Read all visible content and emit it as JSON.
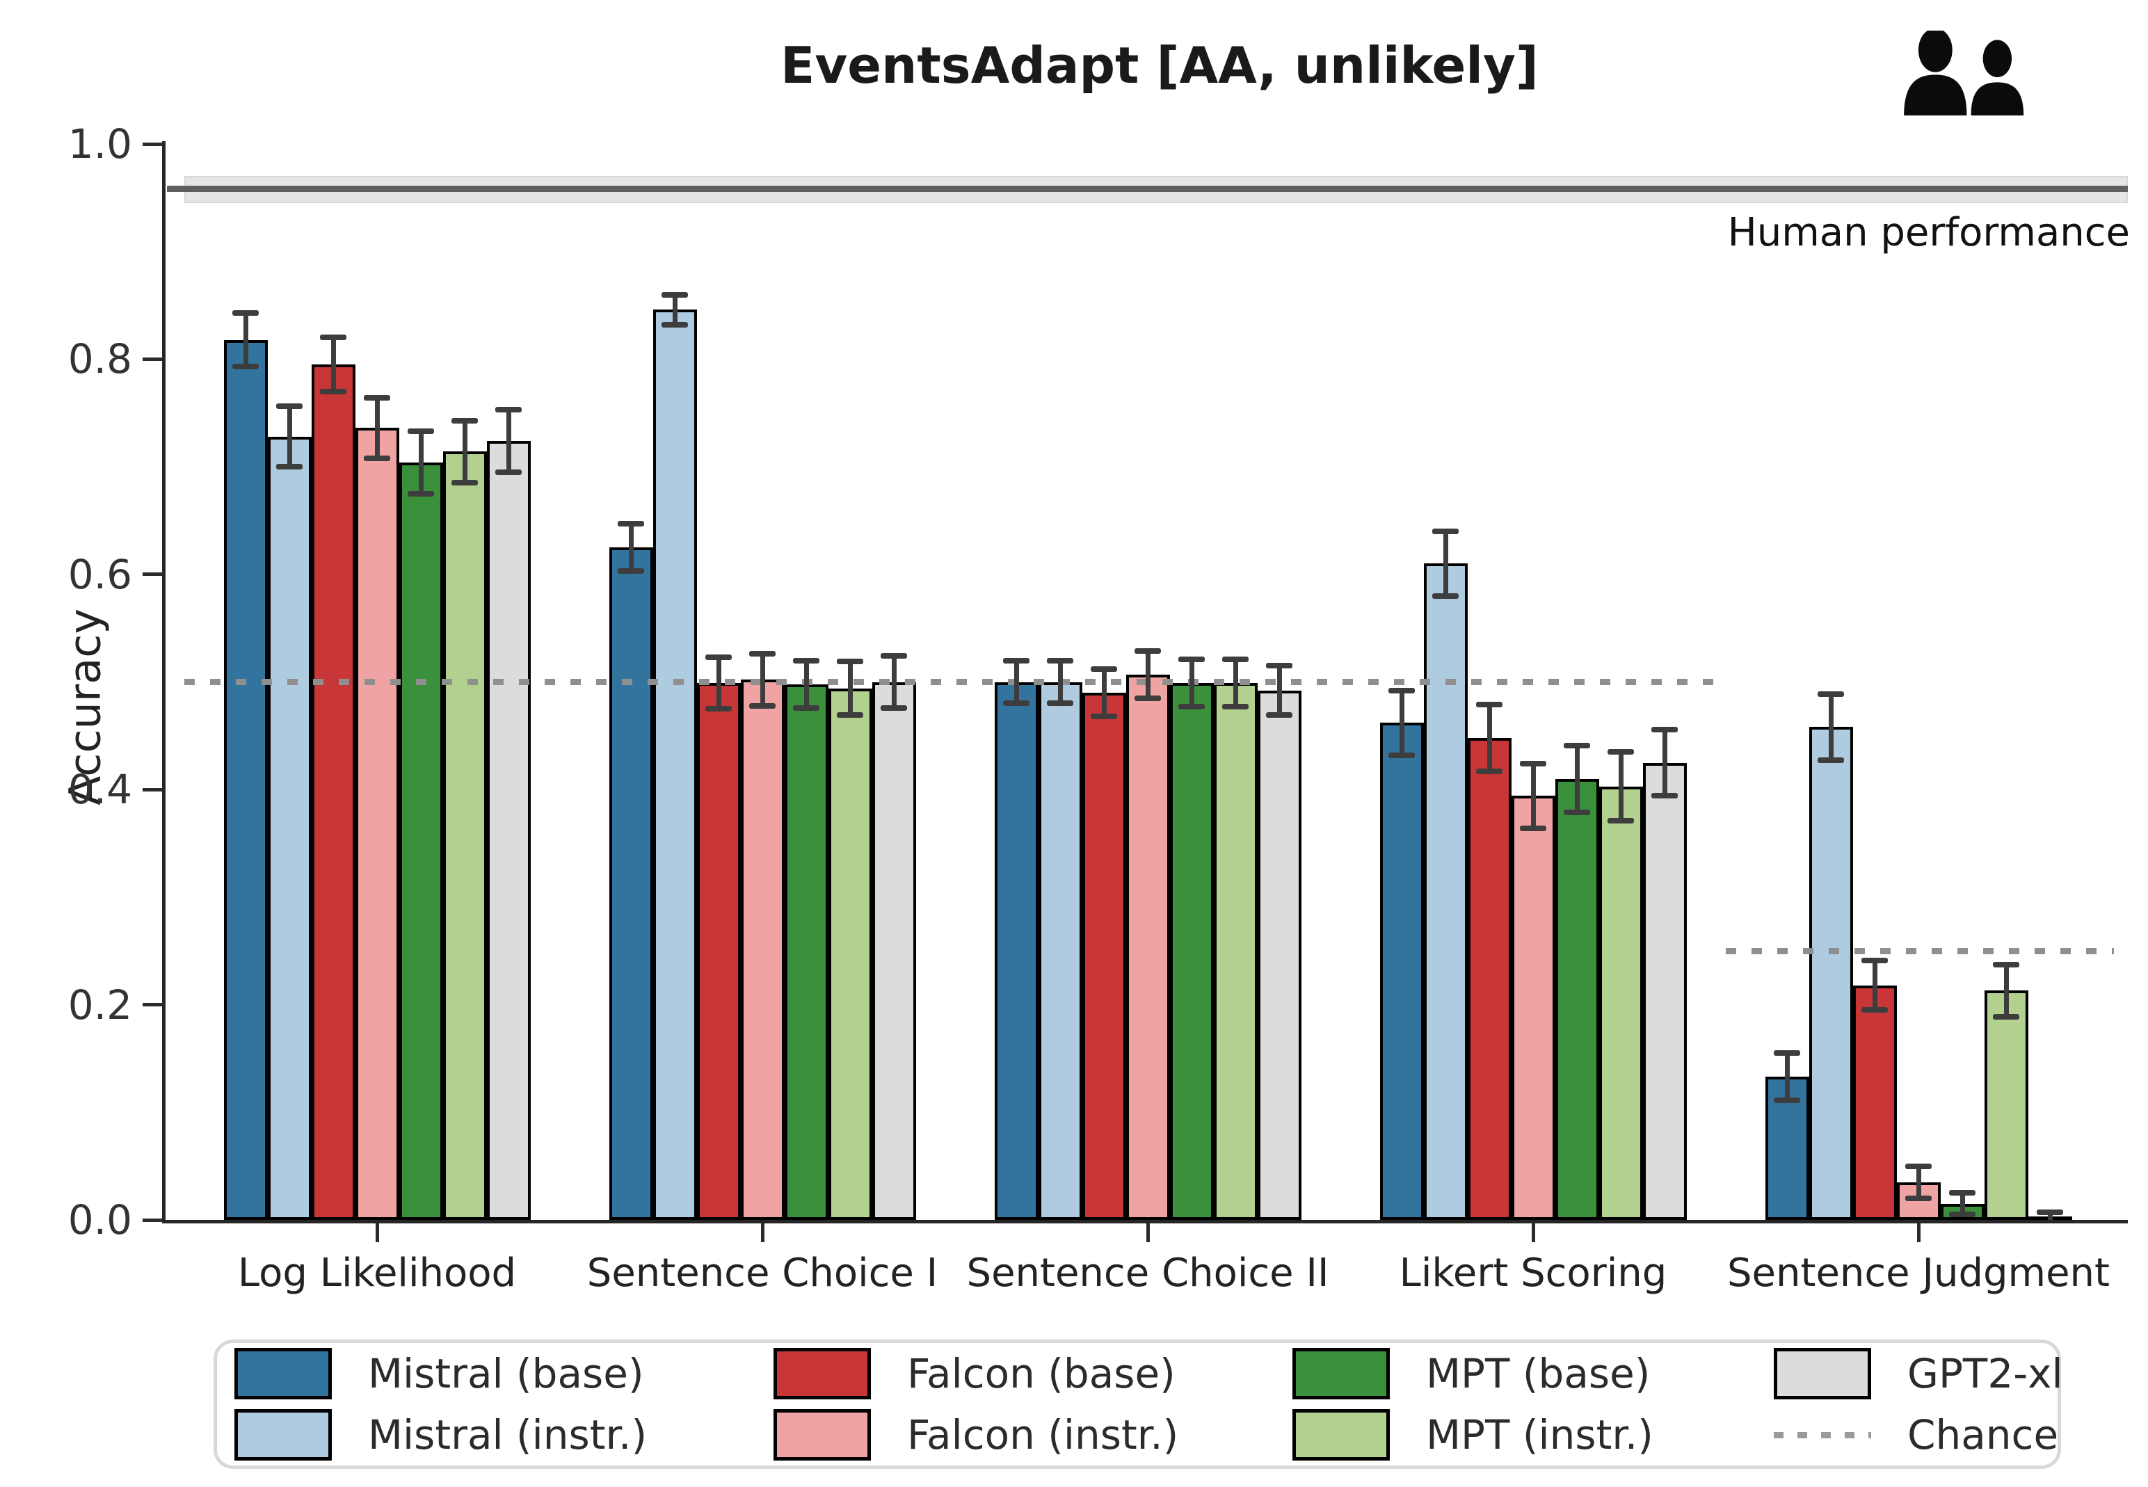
{
  "figure": {
    "top_right_icon": "two-people-icon"
  },
  "chart_data": {
    "type": "bar",
    "title": "EventsAdapt [AA, unlikely]",
    "ylabel": "Accuracy",
    "xlabel": "",
    "ylim": [
      0.0,
      1.0
    ],
    "ytick_labels": [
      "0.0",
      "0.2",
      "0.4",
      "0.6",
      "0.8",
      "1.0"
    ],
    "grid": false,
    "legend_position": "bottom",
    "categories": [
      "Log Likelihood",
      "Sentence Choice I",
      "Sentence Choice II",
      "Likert Scoring",
      "Sentence Judgment"
    ],
    "series": [
      {
        "name": "Mistral (base)",
        "color": "#32749E",
        "values": [
          0.818,
          0.625,
          0.5,
          0.462,
          0.133
        ],
        "errors": [
          0.025,
          0.022,
          0.02,
          0.03,
          0.022
        ]
      },
      {
        "name": "Mistral (instr.)",
        "color": "#AFCBDF",
        "values": [
          0.728,
          0.846,
          0.5,
          0.61,
          0.458
        ],
        "errors": [
          0.028,
          0.014,
          0.02,
          0.03,
          0.031
        ]
      },
      {
        "name": "Falcon (base)",
        "color": "#C93638",
        "values": [
          0.795,
          0.499,
          0.49,
          0.448,
          0.218
        ],
        "errors": [
          0.025,
          0.024,
          0.022,
          0.031,
          0.023
        ]
      },
      {
        "name": "Falcon (instr.)",
        "color": "#EFA4A3",
        "values": [
          0.736,
          0.502,
          0.507,
          0.394,
          0.035
        ],
        "errors": [
          0.028,
          0.024,
          0.022,
          0.03,
          0.015
        ]
      },
      {
        "name": "MPT (base)",
        "color": "#3B913B",
        "values": [
          0.704,
          0.498,
          0.499,
          0.41,
          0.015
        ],
        "errors": [
          0.029,
          0.022,
          0.022,
          0.031,
          0.01
        ]
      },
      {
        "name": "MPT (instr.)",
        "color": "#B2D08E",
        "values": [
          0.714,
          0.494,
          0.499,
          0.403,
          0.213
        ],
        "errors": [
          0.029,
          0.025,
          0.022,
          0.032,
          0.024
        ]
      },
      {
        "name": "GPT2-xl",
        "color": "#DCDCDC",
        "values": [
          0.724,
          0.5,
          0.492,
          0.425,
          0.003
        ],
        "errors": [
          0.029,
          0.024,
          0.023,
          0.031,
          0.004
        ]
      }
    ],
    "chance": {
      "label": "Chance",
      "color": "#8f8f8f",
      "segments": [
        {
          "value": 0.5,
          "from_group": 0,
          "to_group": 3
        },
        {
          "value": 0.25,
          "from_group": 4,
          "to_group": 4
        }
      ]
    },
    "human": {
      "label": "Human performance",
      "value": 0.958,
      "band": [
        0.945,
        0.97
      ],
      "line_color": "#5f5f5f",
      "band_color": "#e6e6e6"
    }
  }
}
